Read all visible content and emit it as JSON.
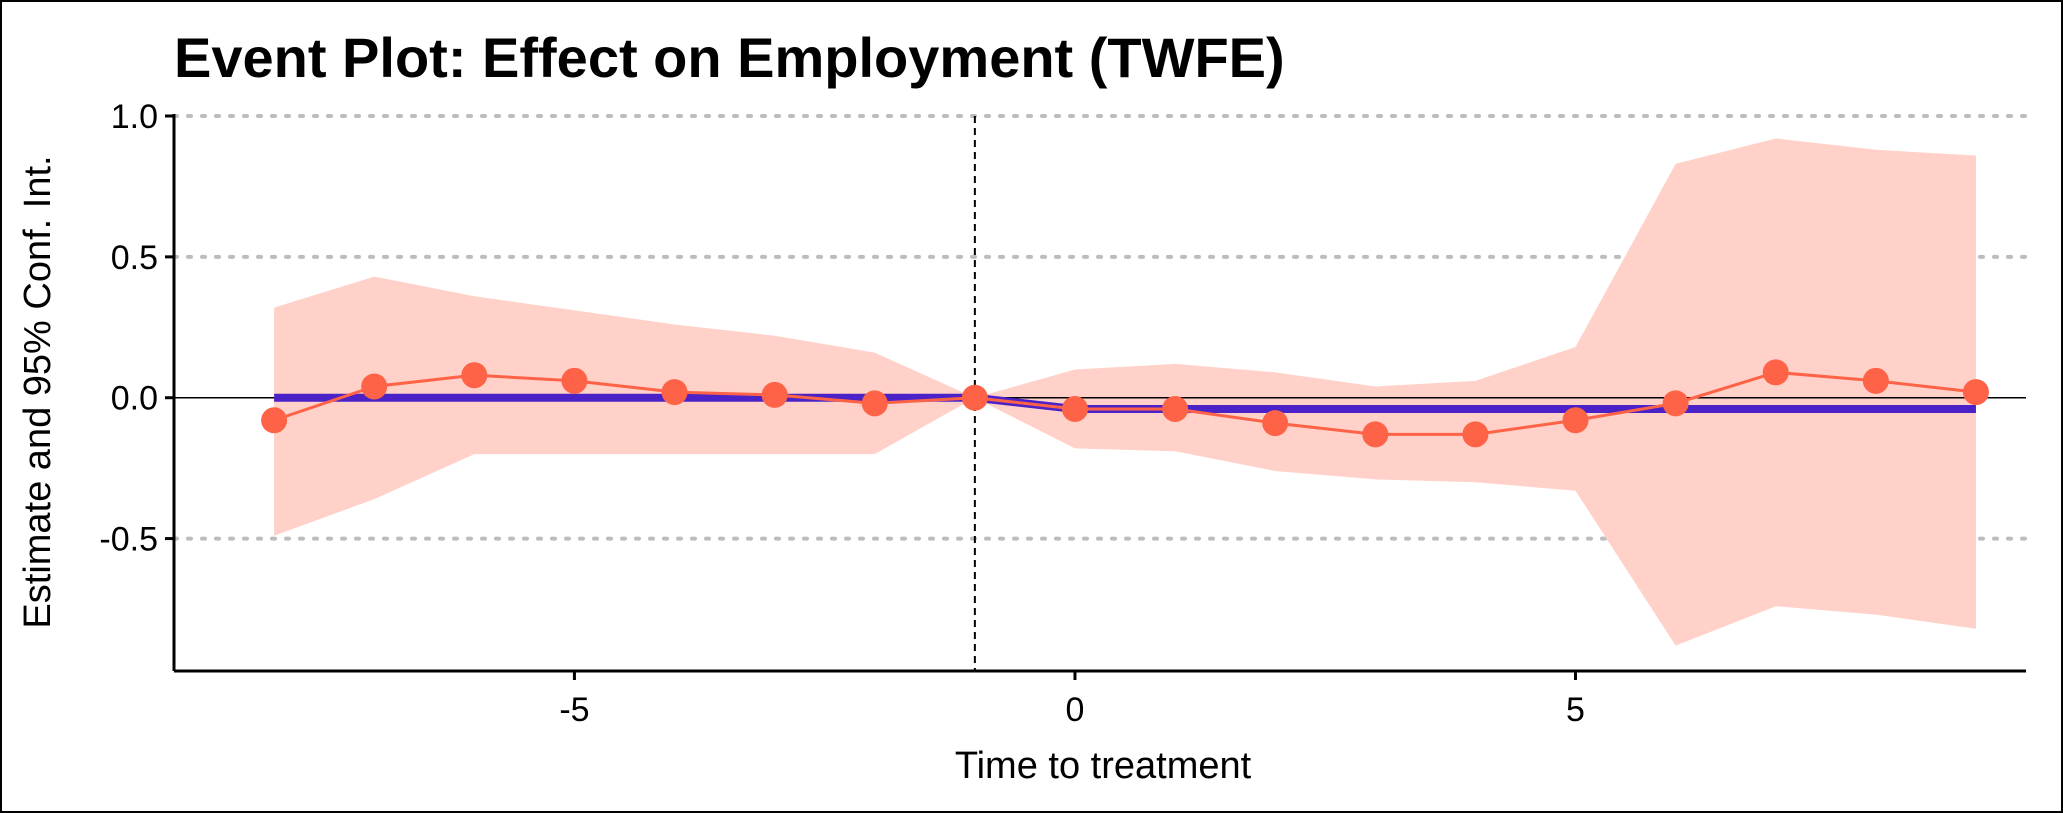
{
  "chart_data": {
    "type": "line",
    "title": "Event Plot: Effect on Employment (TWFE)",
    "xlabel": "Time to treatment",
    "ylabel": "Estimate and 95% Conf. Int.",
    "xlim": [
      -9.0,
      9.5
    ],
    "ylim": [
      -0.97,
      1.0
    ],
    "x_ticks": [
      -5,
      0,
      5
    ],
    "x_tick_labels": [
      "-5",
      "0",
      "5"
    ],
    "y_ticks": [
      1.0,
      0.5,
      0.0,
      -0.5
    ],
    "y_tick_labels": [
      "1.0",
      "0.5",
      "0.0",
      "-0.5"
    ],
    "grid": "horizontal dotted",
    "reference_line_x": -1,
    "reference_line_y": 0,
    "x": [
      -8,
      -7,
      -6,
      -5,
      -4,
      -3,
      -2,
      -1,
      0,
      1,
      2,
      3,
      4,
      5,
      6,
      7,
      8,
      9
    ],
    "series": [
      {
        "values": [
          -0.08,
          0.04,
          0.08,
          0.06,
          0.02,
          0.01,
          -0.02,
          0.0,
          -0.04,
          -0.04,
          -0.09,
          -0.13,
          -0.13,
          -0.08,
          -0.02,
          0.09,
          0.06,
          0.02
        ],
        "ci_lower": [
          -0.49,
          -0.36,
          -0.2,
          -0.2,
          -0.2,
          -0.2,
          -0.2,
          0.0,
          -0.18,
          -0.19,
          -0.26,
          -0.29,
          -0.3,
          -0.33,
          -0.88,
          -0.74,
          -0.77,
          -0.82
        ],
        "ci_upper": [
          0.32,
          0.43,
          0.36,
          0.31,
          0.26,
          0.22,
          0.16,
          0.0,
          0.1,
          0.12,
          0.09,
          0.04,
          0.06,
          0.18,
          0.83,
          0.92,
          0.88,
          0.86
        ],
        "color": "#FF6347",
        "band_color": "#FFD1C8"
      },
      {
        "x": [
          -8,
          -1,
          0,
          9
        ],
        "values": [
          0.0,
          0.0,
          -0.04,
          -0.04
        ],
        "color": "#4A22C8"
      }
    ]
  }
}
